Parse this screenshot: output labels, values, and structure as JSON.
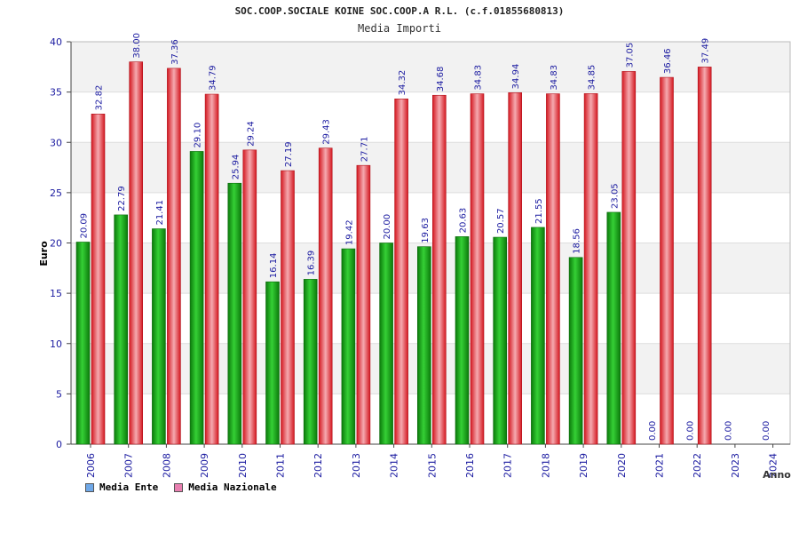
{
  "chart_data": {
    "type": "bar",
    "title": "SOC.COOP.SOCIALE KOINE SOC.COOP.A R.L. (c.f.01855680813)",
    "subtitle": "Media Importi",
    "ylabel": "Euro",
    "xlabel": "Anno",
    "ylim": [
      0,
      40
    ],
    "yticks": [
      0,
      5,
      10,
      15,
      20,
      25,
      30,
      35,
      40
    ],
    "grid": true,
    "legend_position": "bottom-left",
    "categories": [
      "2006",
      "2007",
      "2008",
      "2009",
      "2010",
      "2011",
      "2012",
      "2013",
      "2014",
      "2015",
      "2016",
      "2017",
      "2018",
      "2019",
      "2020",
      "2021",
      "2022",
      "2023",
      "2024"
    ],
    "series": [
      {
        "name": "Media Ente",
        "legend_color": "#6fa8e8",
        "bar_color": "#12a012",
        "values": [
          20.09,
          22.79,
          21.41,
          29.1,
          25.94,
          16.14,
          16.39,
          19.42,
          20.0,
          19.63,
          20.63,
          20.57,
          21.55,
          18.56,
          23.05,
          0.0,
          0.0,
          0.0,
          0.0
        ],
        "labels": [
          "20.09",
          "22.79",
          "21.41",
          "29.10",
          "25.94",
          "16.14",
          "16.39",
          "19.42",
          "20.00",
          "19.63",
          "20.63",
          "20.57",
          "21.55",
          "18.56",
          "23.05",
          "0.00",
          "0.00",
          "0.00",
          "0.00"
        ]
      },
      {
        "name": "Media Nazionale",
        "legend_color": "#e87fb0",
        "bar_color": "#e8202a",
        "values": [
          32.82,
          38.0,
          37.36,
          34.79,
          29.24,
          27.19,
          29.43,
          27.71,
          34.32,
          34.68,
          34.83,
          34.94,
          34.83,
          34.85,
          37.05,
          36.46,
          37.49,
          null,
          null
        ],
        "labels": [
          "32.82",
          "38.00",
          "37.36",
          "34.79",
          "29.24",
          "27.19",
          "29.43",
          "27.71",
          "34.32",
          "34.68",
          "34.83",
          "34.94",
          "34.83",
          "34.85",
          "37.05",
          "36.46",
          "37.49",
          "",
          ""
        ]
      }
    ]
  },
  "colors": {
    "axis_text": "#1a1aa0",
    "band_light": "#f2f2f2",
    "plot_border": "#bbbbbb"
  }
}
